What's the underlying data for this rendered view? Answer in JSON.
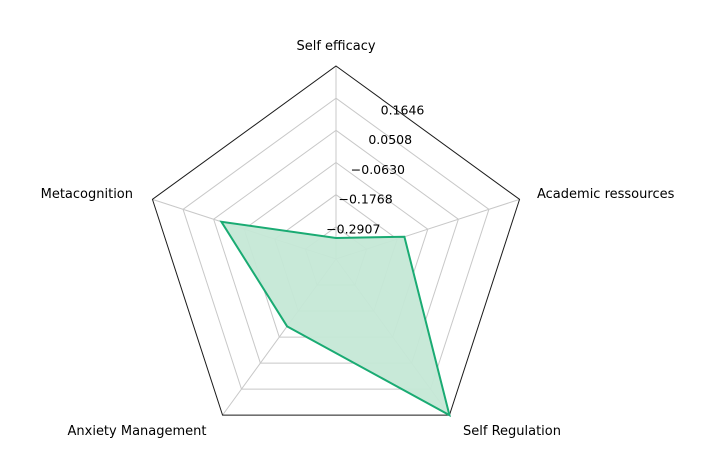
{
  "chart_data": {
    "type": "radar",
    "categories": [
      "Self efficacy",
      "Academic ressources",
      "Self Regulation",
      "Anxiety Management",
      "Metacognition"
    ],
    "ticks": [
      -0.2907,
      -0.1768,
      -0.063,
      0.0508,
      0.1646
    ],
    "tick_labels": [
      "−0.2907",
      "−0.1768",
      "−0.0630",
      "0.0508",
      "0.1646"
    ],
    "rlim": [
      -0.4045,
      0.2785
    ],
    "series": [
      {
        "values": [
          -0.33,
          -0.15,
          0.2785,
          -0.11,
          0.022
        ]
      }
    ],
    "colors": {
      "line": "#1aab73",
      "fill": "#c5e8d6",
      "grid": "#c8c8c8",
      "frame": "#1a1a1a"
    }
  }
}
